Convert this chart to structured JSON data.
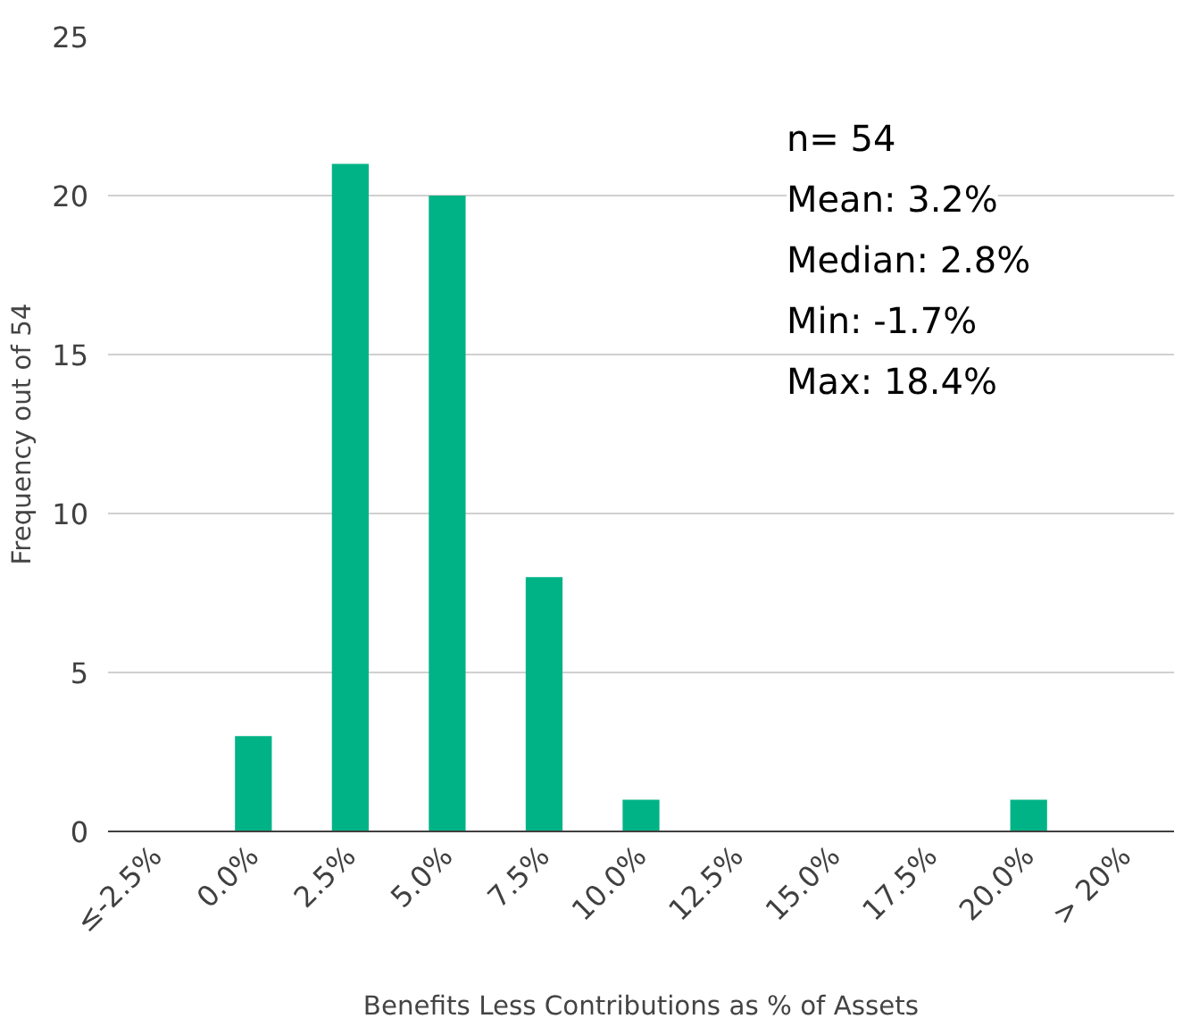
{
  "chart_data": {
    "type": "bar",
    "categories": [
      "≤-2.5%",
      "0.0%",
      "2.5%",
      "5.0%",
      "7.5%",
      "10.0%",
      "12.5%",
      "15.0%",
      "17.5%",
      "20.0%",
      "> 20%"
    ],
    "values": [
      0,
      3,
      21,
      20,
      8,
      1,
      0,
      0,
      0,
      1,
      0
    ],
    "color": "#00b386",
    "xlabel": "Benefits Less Contributions as % of Assets",
    "ylabel": "Frequency out of 54",
    "ylim": [
      0,
      25
    ],
    "yticks": [
      0,
      5,
      10,
      15,
      20,
      25
    ],
    "grid": "y",
    "annotations": [
      "n= 54",
      "Mean: 3.2%",
      "Median: 2.8%",
      "Min: -1.7%",
      "Max: 18.4%"
    ]
  }
}
